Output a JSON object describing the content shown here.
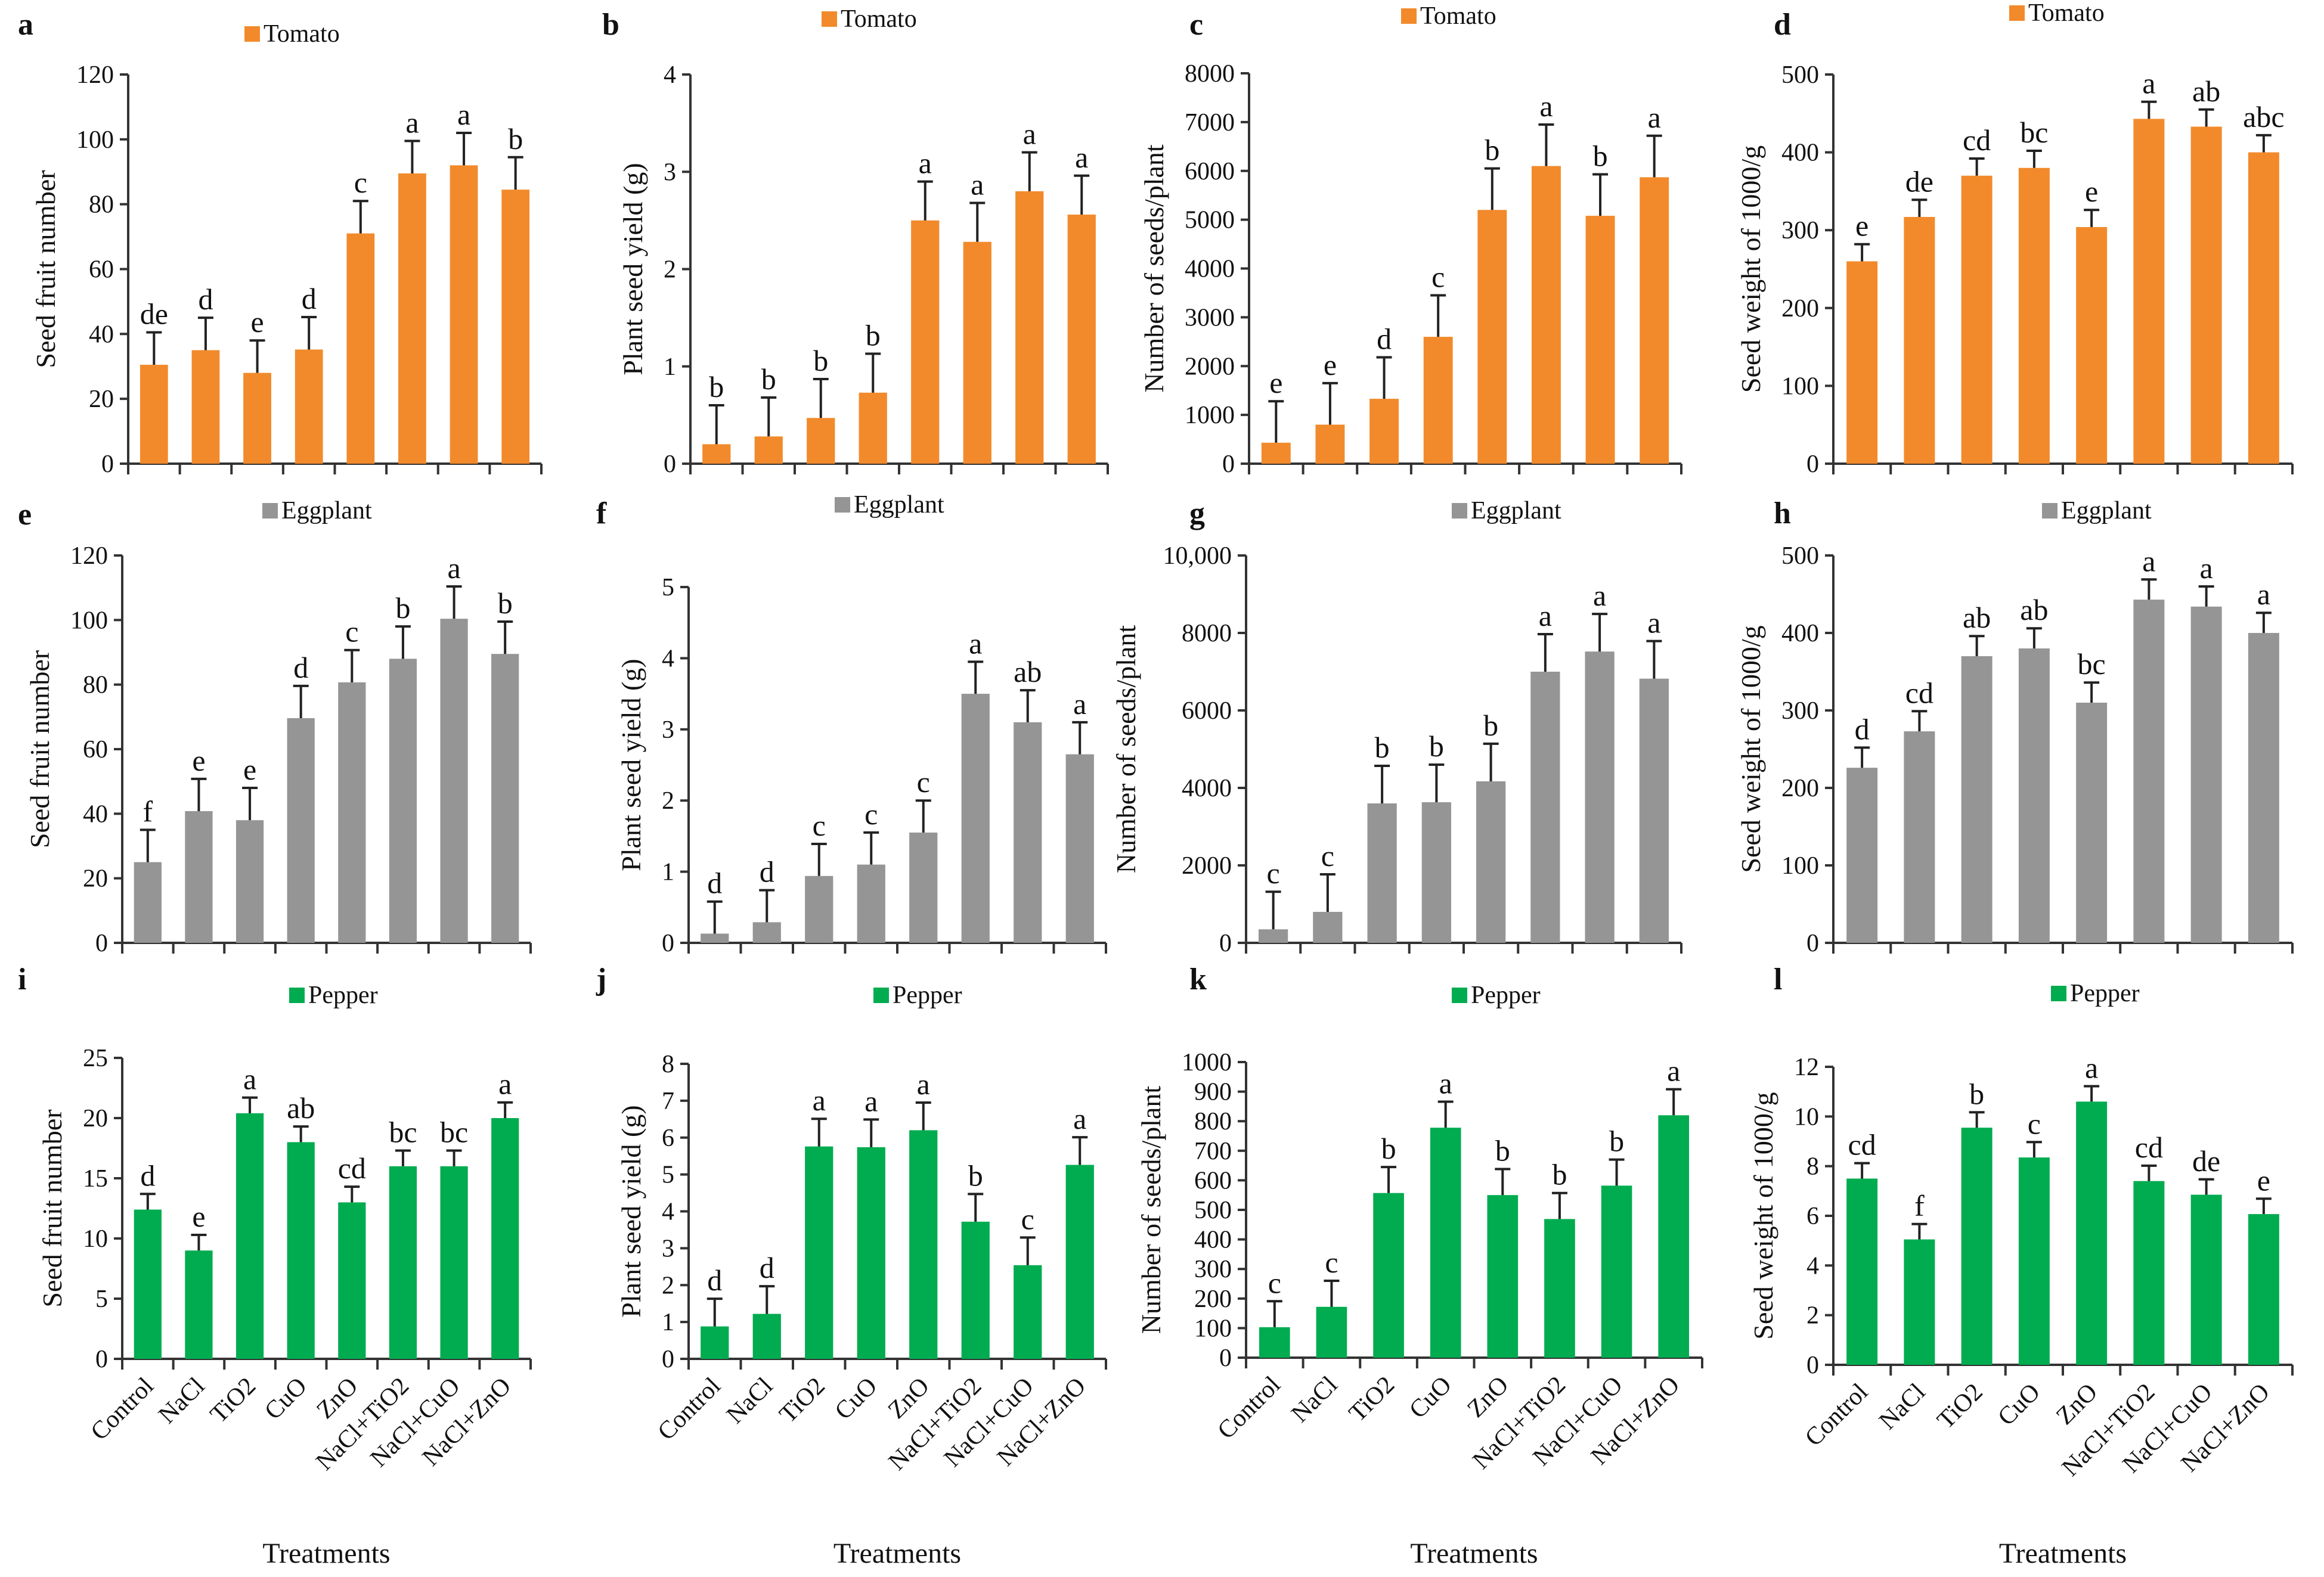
{
  "figure": {
    "treatments": [
      "Control",
      "NaCl",
      "TiO2",
      "CuO",
      "ZnO",
      "NaCl+TiO2",
      "NaCl+CuO",
      "NaCl+ZnO"
    ],
    "xlabel": "Treatments",
    "colors": {
      "Tomato": "#f28a2b",
      "Eggplant": "#959595",
      "Pepper": "#00ac4f"
    }
  },
  "chart_data": [
    {
      "panel": "a",
      "type": "bar",
      "legend": "Tomato",
      "ylabel": "Seed fruit number",
      "ylim": [
        0,
        120
      ],
      "yticks": [
        0,
        20,
        40,
        60,
        80,
        100,
        120
      ],
      "ytick_labels": [
        "0",
        "20",
        "40",
        "60",
        "80",
        "100",
        "120"
      ],
      "categories": [
        "Control",
        "NaCl",
        "TiO2",
        "CuO",
        "ZnO",
        "NaCl+TiO2",
        "NaCl+CuO",
        "NaCl+ZnO"
      ],
      "values": [
        30.5,
        35,
        28,
        35.2,
        71,
        89.5,
        92,
        84.5
      ],
      "errors": [
        10,
        10,
        10,
        10,
        10,
        10,
        10,
        10
      ],
      "labels": [
        "de",
        "d",
        "e",
        "d",
        "c",
        "a",
        "a",
        "b"
      ],
      "show_xlabels": false
    },
    {
      "panel": "b",
      "type": "bar",
      "legend": "Tomato",
      "ylabel": "Plant seed yield (g)",
      "ylim": [
        0,
        4
      ],
      "yticks": [
        0,
        1,
        2,
        3,
        4
      ],
      "ytick_labels": [
        "0",
        "1",
        "2",
        "3",
        "4"
      ],
      "categories": [
        "Control",
        "NaCl",
        "TiO2",
        "CuO",
        "ZnO",
        "NaCl+TiO2",
        "NaCl+CuO",
        "NaCl+ZnO"
      ],
      "values": [
        0.2,
        0.28,
        0.47,
        0.73,
        2.5,
        2.28,
        2.8,
        2.56
      ],
      "errors": [
        0.4,
        0.4,
        0.4,
        0.4,
        0.4,
        0.4,
        0.4,
        0.4
      ],
      "labels": [
        "b",
        "b",
        "b",
        "b",
        "a",
        "a",
        "a",
        "a"
      ],
      "show_xlabels": false
    },
    {
      "panel": "c",
      "type": "bar",
      "legend": "Tomato",
      "ylabel": "Number of seeds/plant",
      "ylim": [
        0,
        8000
      ],
      "yticks": [
        0,
        1000,
        2000,
        3000,
        4000,
        5000,
        6000,
        7000,
        8000
      ],
      "ytick_labels": [
        "0",
        "1000",
        "2000",
        "3000",
        "4000",
        "5000",
        "6000",
        "7000",
        "8000"
      ],
      "categories": [
        "Control",
        "NaCl",
        "TiO2",
        "CuO",
        "ZnO",
        "NaCl+TiO2",
        "NaCl+CuO",
        "NaCl+ZnO"
      ],
      "values": [
        430,
        800,
        1330,
        2600,
        5200,
        6100,
        5080,
        5870
      ],
      "errors": [
        850,
        850,
        850,
        850,
        850,
        850,
        850,
        850
      ],
      "labels": [
        "e",
        "e",
        "d",
        "c",
        "b",
        "a",
        "b",
        "a"
      ],
      "show_xlabels": false
    },
    {
      "panel": "d",
      "type": "bar",
      "legend": "Tomato",
      "ylabel": "Seed weight of 1000/g",
      "ylim": [
        0,
        500
      ],
      "yticks": [
        0,
        100,
        200,
        300,
        400,
        500
      ],
      "ytick_labels": [
        "0",
        "100",
        "200",
        "300",
        "400",
        "500"
      ],
      "categories": [
        "Control",
        "NaCl",
        "TiO2",
        "CuO",
        "ZnO",
        "NaCl+TiO2",
        "NaCl+CuO",
        "NaCl+ZnO"
      ],
      "values": [
        260,
        317,
        370,
        380,
        304,
        443,
        433,
        400
      ],
      "errors": [
        22,
        22,
        22,
        22,
        22,
        22,
        22,
        22
      ],
      "labels": [
        "e",
        "de",
        "cd",
        "bc",
        "e",
        "a",
        "ab",
        "abc"
      ],
      "show_xlabels": false
    },
    {
      "panel": "e",
      "type": "bar",
      "legend": "Eggplant",
      "ylabel": "Seed fruit number",
      "ylim": [
        0,
        120
      ],
      "yticks": [
        0,
        20,
        40,
        60,
        80,
        100,
        120
      ],
      "ytick_labels": [
        "0",
        "20",
        "40",
        "60",
        "80",
        "100",
        "120"
      ],
      "categories": [
        "Control",
        "NaCl",
        "TiO2",
        "CuO",
        "ZnO",
        "NaCl+TiO2",
        "NaCl+CuO",
        "NaCl+ZnO"
      ],
      "values": [
        25,
        40.8,
        38,
        69.6,
        80.7,
        88,
        100.4,
        89.5
      ],
      "errors": [
        10,
        10,
        10,
        10,
        10,
        10,
        10,
        10
      ],
      "labels": [
        "f",
        "e",
        "e",
        "d",
        "c",
        "b",
        "a",
        "b"
      ],
      "show_xlabels": false
    },
    {
      "panel": "f",
      "type": "bar",
      "legend": "Eggplant",
      "ylabel": "Plant seed yield (g)",
      "ylim": [
        0,
        5
      ],
      "yticks": [
        0,
        1,
        2,
        3,
        4,
        5
      ],
      "ytick_labels": [
        "0",
        "1",
        "2",
        "3",
        "4",
        "5"
      ],
      "categories": [
        "Control",
        "NaCl",
        "TiO2",
        "CuO",
        "ZnO",
        "NaCl+TiO2",
        "NaCl+CuO",
        "NaCl+ZnO"
      ],
      "values": [
        0.13,
        0.29,
        0.94,
        1.1,
        1.55,
        3.5,
        3.1,
        2.65
      ],
      "errors": [
        0.45,
        0.45,
        0.45,
        0.45,
        0.45,
        0.45,
        0.45,
        0.45
      ],
      "labels": [
        "d",
        "d",
        "c",
        "c",
        "c",
        "a",
        "ab",
        "a"
      ],
      "show_xlabels": false
    },
    {
      "panel": "g",
      "type": "bar",
      "legend": "Eggplant",
      "ylabel": "Number of seeds/plant",
      "ylim": [
        0,
        10000
      ],
      "yticks": [
        0,
        2000,
        4000,
        6000,
        8000,
        10000
      ],
      "ytick_labels": [
        "0",
        "2000",
        "4000",
        "6000",
        "8000",
        "10,000"
      ],
      "categories": [
        "Control",
        "NaCl",
        "TiO2",
        "CuO",
        "ZnO",
        "NaCl+TiO2",
        "NaCl+CuO",
        "NaCl+ZnO"
      ],
      "values": [
        350,
        800,
        3600,
        3630,
        4170,
        7000,
        7520,
        6820
      ],
      "errors": [
        970,
        970,
        970,
        970,
        970,
        970,
        970,
        970
      ],
      "labels": [
        "c",
        "c",
        "b",
        "b",
        "b",
        "a",
        "a",
        "a"
      ],
      "show_xlabels": false
    },
    {
      "panel": "h",
      "type": "bar",
      "legend": "Eggplant",
      "ylabel": "Seed weight of 1000/g",
      "ylim": [
        0,
        500
      ],
      "yticks": [
        0,
        100,
        200,
        300,
        400,
        500
      ],
      "ytick_labels": [
        "0",
        "100",
        "200",
        "300",
        "400",
        "500"
      ],
      "categories": [
        "Control",
        "NaCl",
        "TiO2",
        "CuO",
        "ZnO",
        "NaCl+TiO2",
        "NaCl+CuO",
        "NaCl+ZnO"
      ],
      "values": [
        226,
        273,
        370,
        380,
        310,
        443,
        434,
        400
      ],
      "errors": [
        26,
        26,
        26,
        26,
        26,
        26,
        26,
        26
      ],
      "labels": [
        "d",
        "cd",
        "ab",
        "ab",
        "bc",
        "a",
        "a",
        "a"
      ],
      "show_xlabels": false
    },
    {
      "panel": "i",
      "type": "bar",
      "legend": "Pepper",
      "ylabel": "Seed fruit number",
      "ylim": [
        0,
        25
      ],
      "yticks": [
        0,
        5,
        10,
        15,
        20,
        25
      ],
      "ytick_labels": [
        "0",
        "5",
        "10",
        "15",
        "20",
        "25"
      ],
      "categories": [
        "Control",
        "NaCl",
        "TiO2",
        "CuO",
        "ZnO",
        "NaCl+TiO2",
        "NaCl+CuO",
        "NaCl+ZnO"
      ],
      "values": [
        12.4,
        9,
        20.4,
        18,
        13,
        16,
        16,
        20
      ],
      "errors": [
        1.3,
        1.3,
        1.3,
        1.3,
        1.3,
        1.3,
        1.3,
        1.3
      ],
      "labels": [
        "d",
        "e",
        "a",
        "ab",
        "cd",
        "bc",
        "bc",
        "a"
      ],
      "show_xlabels": true
    },
    {
      "panel": "j",
      "type": "bar",
      "legend": "Pepper",
      "ylabel": "Plant seed yield (g)",
      "ylim": [
        0,
        8
      ],
      "yticks": [
        0,
        1,
        2,
        3,
        4,
        5,
        6,
        7,
        8
      ],
      "ytick_labels": [
        "0",
        "1",
        "2",
        "3",
        "4",
        "5",
        "6",
        "7",
        "8"
      ],
      "categories": [
        "Control",
        "NaCl",
        "TiO2",
        "CuO",
        "ZnO",
        "NaCl+TiO2",
        "NaCl+CuO",
        "NaCl+ZnO"
      ],
      "values": [
        0.88,
        1.22,
        5.76,
        5.74,
        6.2,
        3.72,
        2.54,
        5.26
      ],
      "errors": [
        0.75,
        0.75,
        0.75,
        0.75,
        0.75,
        0.75,
        0.75,
        0.75
      ],
      "labels": [
        "d",
        "d",
        "a",
        "a",
        "a",
        "b",
        "c",
        "a"
      ],
      "show_xlabels": true
    },
    {
      "panel": "k",
      "type": "bar",
      "legend": "Pepper",
      "ylabel": "Number of seeds/plant",
      "ylim": [
        0,
        1000
      ],
      "yticks": [
        0,
        100,
        200,
        300,
        400,
        500,
        600,
        700,
        800,
        900,
        1000
      ],
      "ytick_labels": [
        "0",
        "100",
        "200",
        "300",
        "400",
        "500",
        "600",
        "700",
        "800",
        "900",
        "1000"
      ],
      "categories": [
        "Control",
        "NaCl",
        "TiO2",
        "CuO",
        "ZnO",
        "NaCl+TiO2",
        "NaCl+CuO",
        "NaCl+ZnO"
      ],
      "values": [
        103,
        172,
        557,
        778,
        550,
        469,
        582,
        820
      ],
      "errors": [
        88,
        88,
        88,
        88,
        88,
        88,
        88,
        88
      ],
      "labels": [
        "c",
        "c",
        "b",
        "a",
        "b",
        "b",
        "b",
        "a"
      ],
      "show_xlabels": true
    },
    {
      "panel": "l",
      "type": "bar",
      "legend": "Pepper",
      "ylabel": "Seed weight of 1000/g",
      "ylim": [
        0,
        12
      ],
      "yticks": [
        0,
        2,
        4,
        6,
        8,
        10,
        12
      ],
      "ytick_labels": [
        "0",
        "2",
        "4",
        "6",
        "8",
        "10",
        "12"
      ],
      "categories": [
        "Control",
        "NaCl",
        "TiO2",
        "CuO",
        "ZnO",
        "NaCl+TiO2",
        "NaCl+CuO",
        "NaCl+ZnO"
      ],
      "values": [
        7.5,
        5.05,
        9.55,
        8.35,
        10.6,
        7.4,
        6.85,
        6.07
      ],
      "errors": [
        0.62,
        0.62,
        0.62,
        0.62,
        0.62,
        0.62,
        0.62,
        0.62
      ],
      "labels": [
        "cd",
        "f",
        "b",
        "c",
        "a",
        "cd",
        "de",
        "e"
      ],
      "show_xlabels": true
    }
  ]
}
